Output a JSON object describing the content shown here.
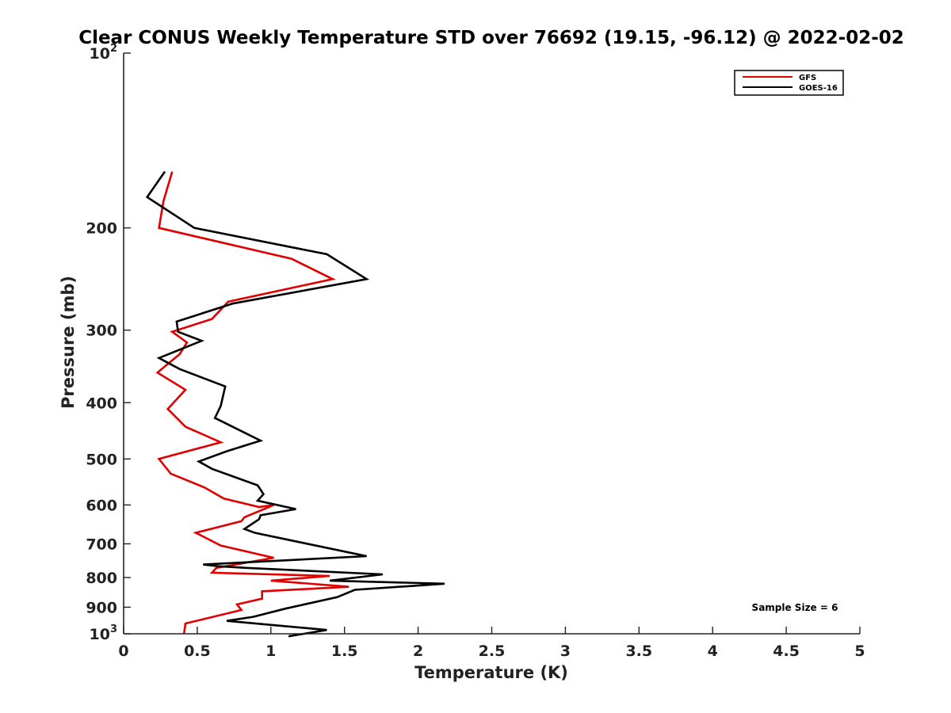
{
  "chart_data": {
    "type": "line",
    "title": "Clear CONUS Weekly Temperature STD over 76692 (19.15, -96.12) @ 2022-02-02",
    "xlabel": "Temperature (K)",
    "ylabel": "Pressure (mb)",
    "xlim": [
      0,
      5
    ],
    "ylim": [
      1000,
      100
    ],
    "yscale": "log",
    "x_ticks": [
      0,
      0.5,
      1,
      1.5,
      2,
      2.5,
      3,
      3.5,
      4,
      4.5,
      5
    ],
    "x_tick_labels": [
      "0",
      "0.5",
      "1",
      "1.5",
      "2",
      "2.5",
      "3",
      "3.5",
      "4",
      "4.5",
      "5"
    ],
    "y_ticks": [
      {
        "value": 100,
        "label": "10",
        "sup": "2"
      },
      {
        "value": 200,
        "label": "200",
        "sup": ""
      },
      {
        "value": 300,
        "label": "300",
        "sup": ""
      },
      {
        "value": 400,
        "label": "400",
        "sup": ""
      },
      {
        "value": 500,
        "label": "500",
        "sup": ""
      },
      {
        "value": 600,
        "label": "600",
        "sup": ""
      },
      {
        "value": 700,
        "label": "700",
        "sup": ""
      },
      {
        "value": 800,
        "label": "800",
        "sup": ""
      },
      {
        "value": 900,
        "label": "900",
        "sup": ""
      },
      {
        "value": 1000,
        "label": "10",
        "sup": "3"
      }
    ],
    "legend": {
      "position": "top-right",
      "entries": [
        "GFS",
        "GOES-16"
      ]
    },
    "annotation": "Sample Size = 6",
    "series": [
      {
        "name": "GFS",
        "color": "#e00000",
        "x": [
          0.33,
          0.27,
          0.24,
          1.14,
          1.42,
          0.71,
          0.6,
          0.33,
          0.43,
          0.38,
          0.23,
          0.42,
          0.3,
          0.42,
          0.66,
          0.24,
          0.32,
          0.55,
          0.68,
          0.92,
          1.02,
          0.82,
          0.8,
          0.49,
          0.66,
          1.02,
          0.63,
          0.6,
          1.4,
          1.0,
          1.53,
          0.94,
          0.94,
          0.77,
          0.8,
          0.42,
          0.41
        ],
        "y": [
          160,
          180,
          200,
          226,
          245,
          268,
          287,
          302,
          315,
          330,
          355,
          380,
          410,
          440,
          468,
          500,
          530,
          560,
          585,
          605,
          600,
          630,
          640,
          670,
          705,
          740,
          770,
          785,
          795,
          810,
          830,
          845,
          870,
          890,
          910,
          960,
          1000
        ]
      },
      {
        "name": "GOES-16",
        "color": "#000000",
        "x": [
          0.28,
          0.16,
          0.48,
          1.38,
          1.65,
          0.74,
          0.36,
          0.37,
          0.53,
          0.24,
          0.38,
          0.69,
          0.66,
          0.62,
          0.93,
          0.7,
          0.51,
          0.6,
          0.91,
          0.95,
          0.91,
          1.17,
          0.93,
          0.92,
          0.82,
          0.89,
          1.19,
          1.65,
          0.54,
          0.64,
          0.83,
          1.76,
          1.4,
          2.18,
          1.57,
          1.45,
          1.1,
          0.88,
          0.7,
          1.38,
          1.12
        ],
        "y": [
          160,
          177,
          200,
          222,
          245,
          270,
          290,
          302,
          313,
          335,
          350,
          375,
          405,
          425,
          465,
          485,
          505,
          520,
          555,
          575,
          590,
          610,
          625,
          635,
          660,
          670,
          695,
          735,
          760,
          765,
          770,
          790,
          810,
          820,
          840,
          865,
          905,
          935,
          950,
          985,
          1010
        ]
      }
    ]
  }
}
